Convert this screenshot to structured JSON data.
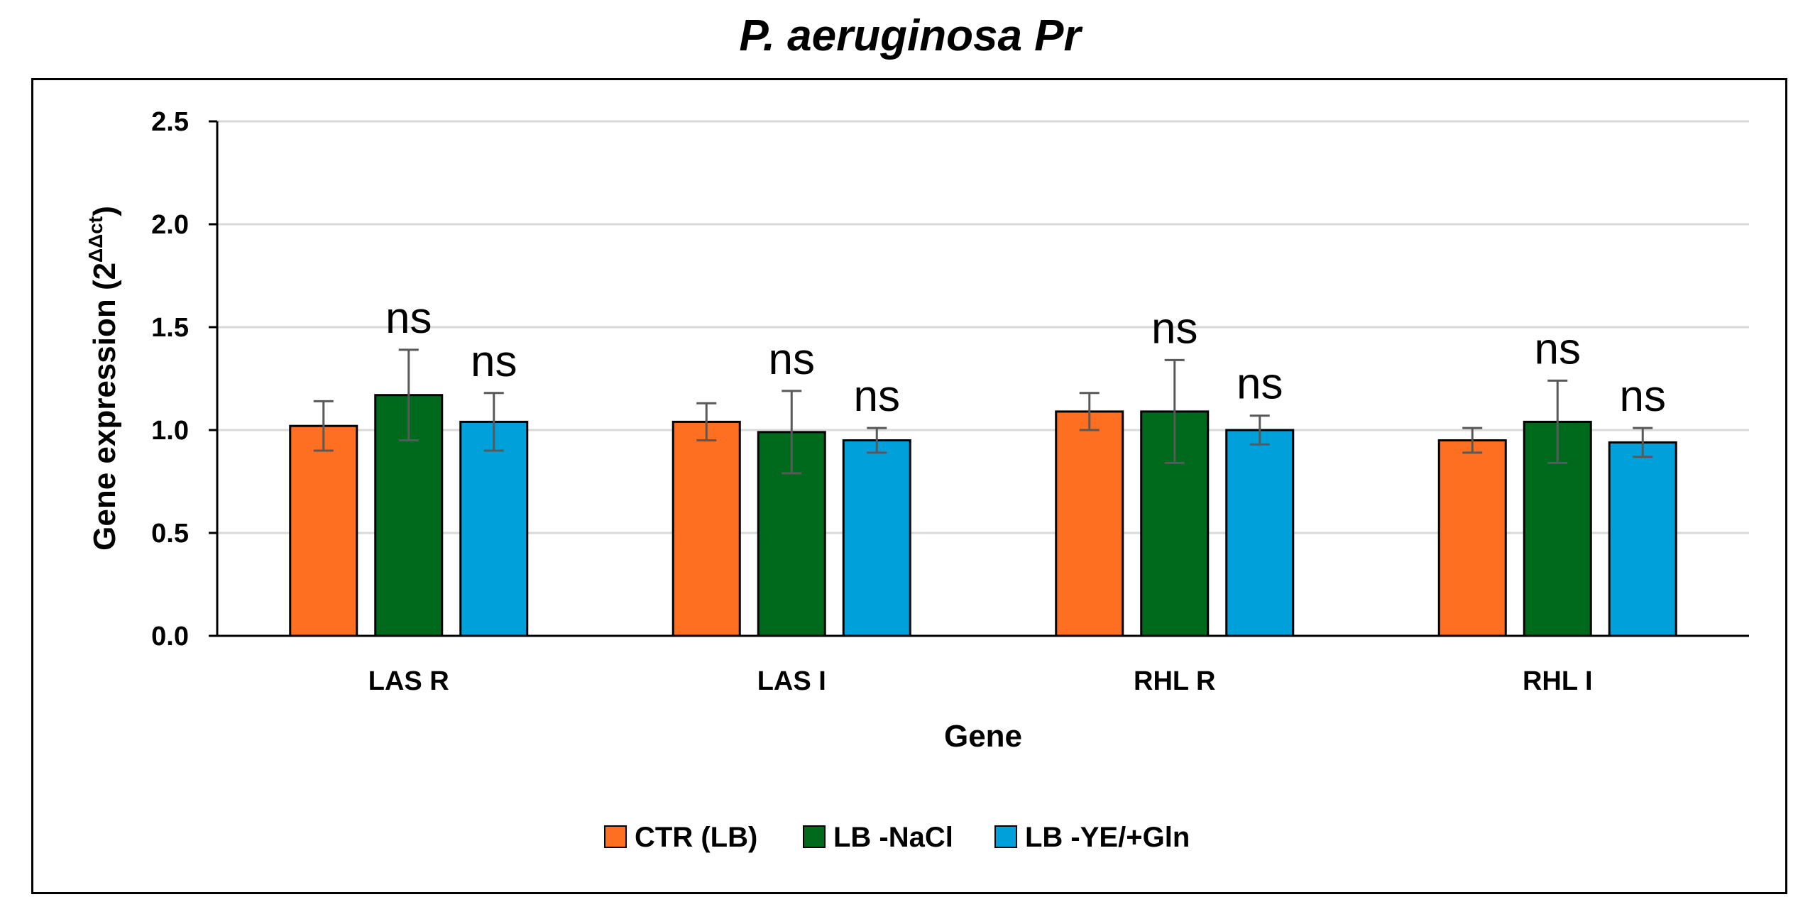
{
  "chart_data": {
    "type": "bar",
    "title": "P. aeruginosa Pr",
    "xlabel": "Gene",
    "ylabel": "Gene expression (2",
    "ylabel_superscript": "ΔΔct",
    "ylabel_close": ")",
    "ylim": [
      0,
      2.5
    ],
    "yticks": [
      "0.0",
      "0.5",
      "1.0",
      "1.5",
      "2.0",
      "2.5"
    ],
    "grid": true,
    "legend_position": "bottom",
    "categories": [
      "LAS R",
      "LAS I",
      "RHL R",
      "RHL I"
    ],
    "series": [
      {
        "name": "CTR (LB)",
        "color": "#ff6f21",
        "values": [
          1.02,
          1.04,
          1.09,
          0.95
        ],
        "errors": [
          0.12,
          0.09,
          0.09,
          0.06
        ],
        "annotations": [
          "",
          "",
          "",
          ""
        ]
      },
      {
        "name": "LB -NaCl",
        "color": "#006a1c",
        "values": [
          1.17,
          0.99,
          1.09,
          1.04
        ],
        "errors": [
          0.22,
          0.2,
          0.25,
          0.2
        ],
        "annotations": [
          "ns",
          "ns",
          "ns",
          "ns"
        ]
      },
      {
        "name": "LB -YE/+Gln",
        "color": "#00a0da",
        "values": [
          1.04,
          0.95,
          1.0,
          0.94
        ],
        "errors": [
          0.14,
          0.06,
          0.07,
          0.07
        ],
        "annotations": [
          "ns",
          "ns",
          "ns",
          "ns"
        ]
      }
    ]
  }
}
